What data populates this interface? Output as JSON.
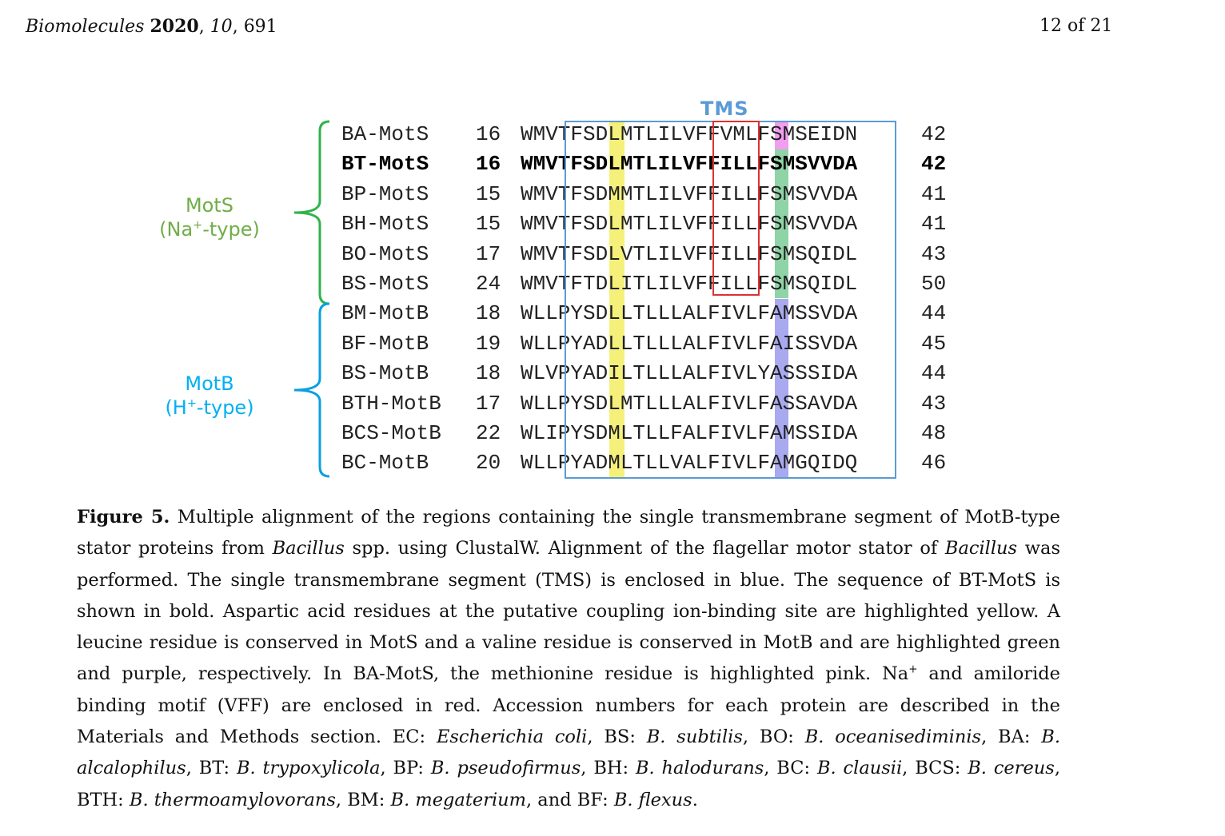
{
  "header": {
    "journal": "Biomolecules",
    "year": "2020",
    "volume": "10",
    "article": "691",
    "page": "12 of 21"
  },
  "figure": {
    "tms_label": "TMS",
    "groups": {
      "mots": {
        "line1": "MotS",
        "line2_pre": "(Na",
        "line2_sup": "+",
        "line2_post": "-type)",
        "color": "#70ad47"
      },
      "motb": {
        "line1": "MotB",
        "line2_pre": "(H",
        "line2_sup": "+",
        "line2_post": "-type)",
        "color": "#00b0f0"
      }
    },
    "highlight_colors": {
      "aspartate": "#f5f07a",
      "leucine": "#8fd4a6",
      "valine": "#a9a9f0",
      "methionine": "#f29ef0",
      "tms_box": "#5b9bd5",
      "vff_box": "#e03030"
    },
    "rows": [
      {
        "name": "BA-MotS",
        "start": "16",
        "seq": "WMVTFSDLMTLILVFFVMLFSMSEIDN",
        "end": "42",
        "bold": false
      },
      {
        "name": "BT-MotS",
        "start": "16",
        "seq": "WMVTFSDLMTLILVFFILLFSMSVVDA",
        "end": "42",
        "bold": true
      },
      {
        "name": "BP-MotS",
        "start": "15",
        "seq": "WMVTFSDMMTLILVFFILLFSMSVVDA",
        "end": "41",
        "bold": false
      },
      {
        "name": "BH-MotS",
        "start": "15",
        "seq": "WMVTFSDLMTLILVFFILLFSMSVVDA",
        "end": "41",
        "bold": false
      },
      {
        "name": "BO-MotS",
        "start": "17",
        "seq": "WMVTFSDLVTLILVFFILLFSMSQIDL",
        "end": "43",
        "bold": false
      },
      {
        "name": "BS-MotS",
        "start": "24",
        "seq": "WMVTFTDLITLILVFFILLFSMSQIDL",
        "end": "50",
        "bold": false
      },
      {
        "name": "BM-MotB",
        "start": "18",
        "seq": "WLLPYSDLLTLLLALFIVLFAMSSVDA",
        "end": "44",
        "bold": false
      },
      {
        "name": "BF-MotB",
        "start": "19",
        "seq": "WLLPYADLLTLLLALFIVLFAISSVDA",
        "end": "45",
        "bold": false
      },
      {
        "name": "BS-MotB",
        "start": "18",
        "seq": "WLVPYADILTLLLALFIVLYASSSIDA",
        "end": "44",
        "bold": false
      },
      {
        "name": "BTH-MotB",
        "start": "17",
        "seq": "WLLPYSDLMTLLLALFIVLFASSAVDA",
        "end": "43",
        "bold": false
      },
      {
        "name": "BCS-MotB",
        "start": "22",
        "seq": "WLIPYSDMLTLLFALFIVLFAMSSIDA",
        "end": "48",
        "bold": false
      },
      {
        "name": "BC-MotB",
        "start": "20",
        "seq": "WLLPYADMLTLLVALFIVLFAMGQIDQ",
        "end": "46",
        "bold": false
      }
    ]
  },
  "caption": {
    "label": "Figure 5.",
    "t1": " Multiple alignment of the regions containing the single transmembrane segment of MotB-type stator proteins from ",
    "bacillus1": "Bacillus",
    "t2": " spp.  using ClustalW. Alignment of the flagellar motor stator of ",
    "bacillus2": "Bacillus",
    "t3": " was performed.  The single transmembrane segment (TMS) is enclosed in blue.  The sequence of BT-MotS is shown in bold.  Aspartic acid residues at the putative coupling ion-binding site are highlighted yellow. A leucine residue is conserved in MotS and a valine residue is conserved in MotB and are highlighted green and purple, respectively.  In BA-MotS, the methionine residue is highlighted pink.  Na",
    "na_sup": "+",
    "t4": " and amiloride binding motif (VFF) are enclosed in red.  Accession numbers for each protein are described in the Materials and Methods section.  EC: ",
    "ec": "Escherichia coli",
    "t5": ", BS: ",
    "bs": "B. subtilis",
    "t6": ", BO: ",
    "bo": "B. oceanisediminis",
    "t7": ", BA: ",
    "ba": "B. alcalophilus",
    "t8": ", BT: ",
    "bt": "B. trypoxylicola",
    "t9": ", BP: ",
    "bp": "B. pseudofirmus",
    "t10": ", BH: ",
    "bh": "B. halodurans",
    "t11": ", BC: ",
    "bc": "B. clausii",
    "t12": ", BCS: ",
    "bcs": "B. cereus",
    "t13": ", BTH: ",
    "bth": "B. thermoamylovorans",
    "t14": ", BM: ",
    "bm": "B. megaterium",
    "t15": ", and BF: ",
    "bf": "B. flexus",
    "t16": "."
  }
}
